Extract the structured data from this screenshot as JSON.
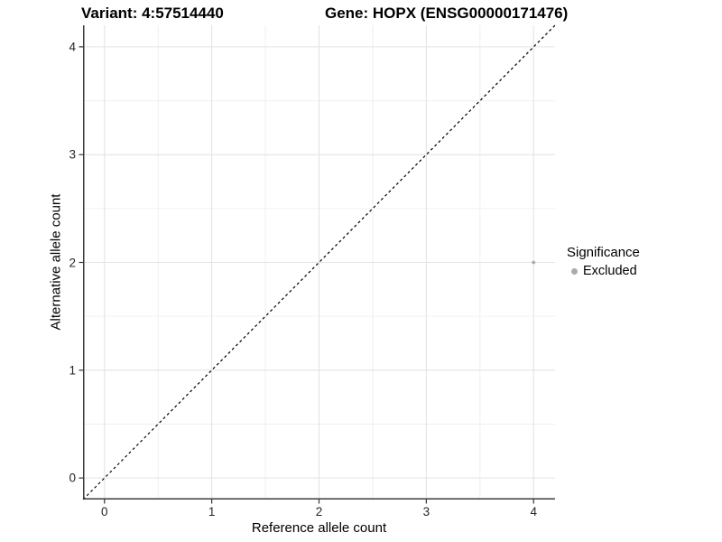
{
  "chart_data": {
    "type": "scatter",
    "title_left": "Variant: 4:57514440",
    "title_right": "Gene: HOPX (ENSG00000171476)",
    "xlabel": "Reference allele count",
    "ylabel": "Alternative allele count",
    "xlim": [
      -0.2,
      4.2
    ],
    "ylim": [
      -0.2,
      4.2
    ],
    "x_ticks": [
      0,
      1,
      2,
      3,
      4
    ],
    "y_ticks": [
      0,
      1,
      2,
      3,
      4
    ],
    "x_minor_ticks": [
      0.5,
      1.5,
      2.5,
      3.5
    ],
    "y_minor_ticks": [
      0.5,
      1.5,
      2.5,
      3.5
    ],
    "grid": true,
    "reference_line": {
      "slope": 1,
      "intercept": 0,
      "style": "dashed",
      "color": "#000000"
    },
    "series": [
      {
        "name": "Excluded",
        "color": "#ababab",
        "points": [
          {
            "x": 4,
            "y": 2
          }
        ]
      }
    ],
    "legend": {
      "position": "right",
      "title": "Significance",
      "entries": [
        {
          "label": "Excluded",
          "color": "#ababab"
        }
      ]
    },
    "colors": {
      "background": "#ffffff",
      "grid_major": "#e4e4e4",
      "grid_minor": "#f0f0f0",
      "axis_line": "#3c3c3c",
      "tick_mark": "#333333",
      "tick_label": "#262626"
    }
  }
}
